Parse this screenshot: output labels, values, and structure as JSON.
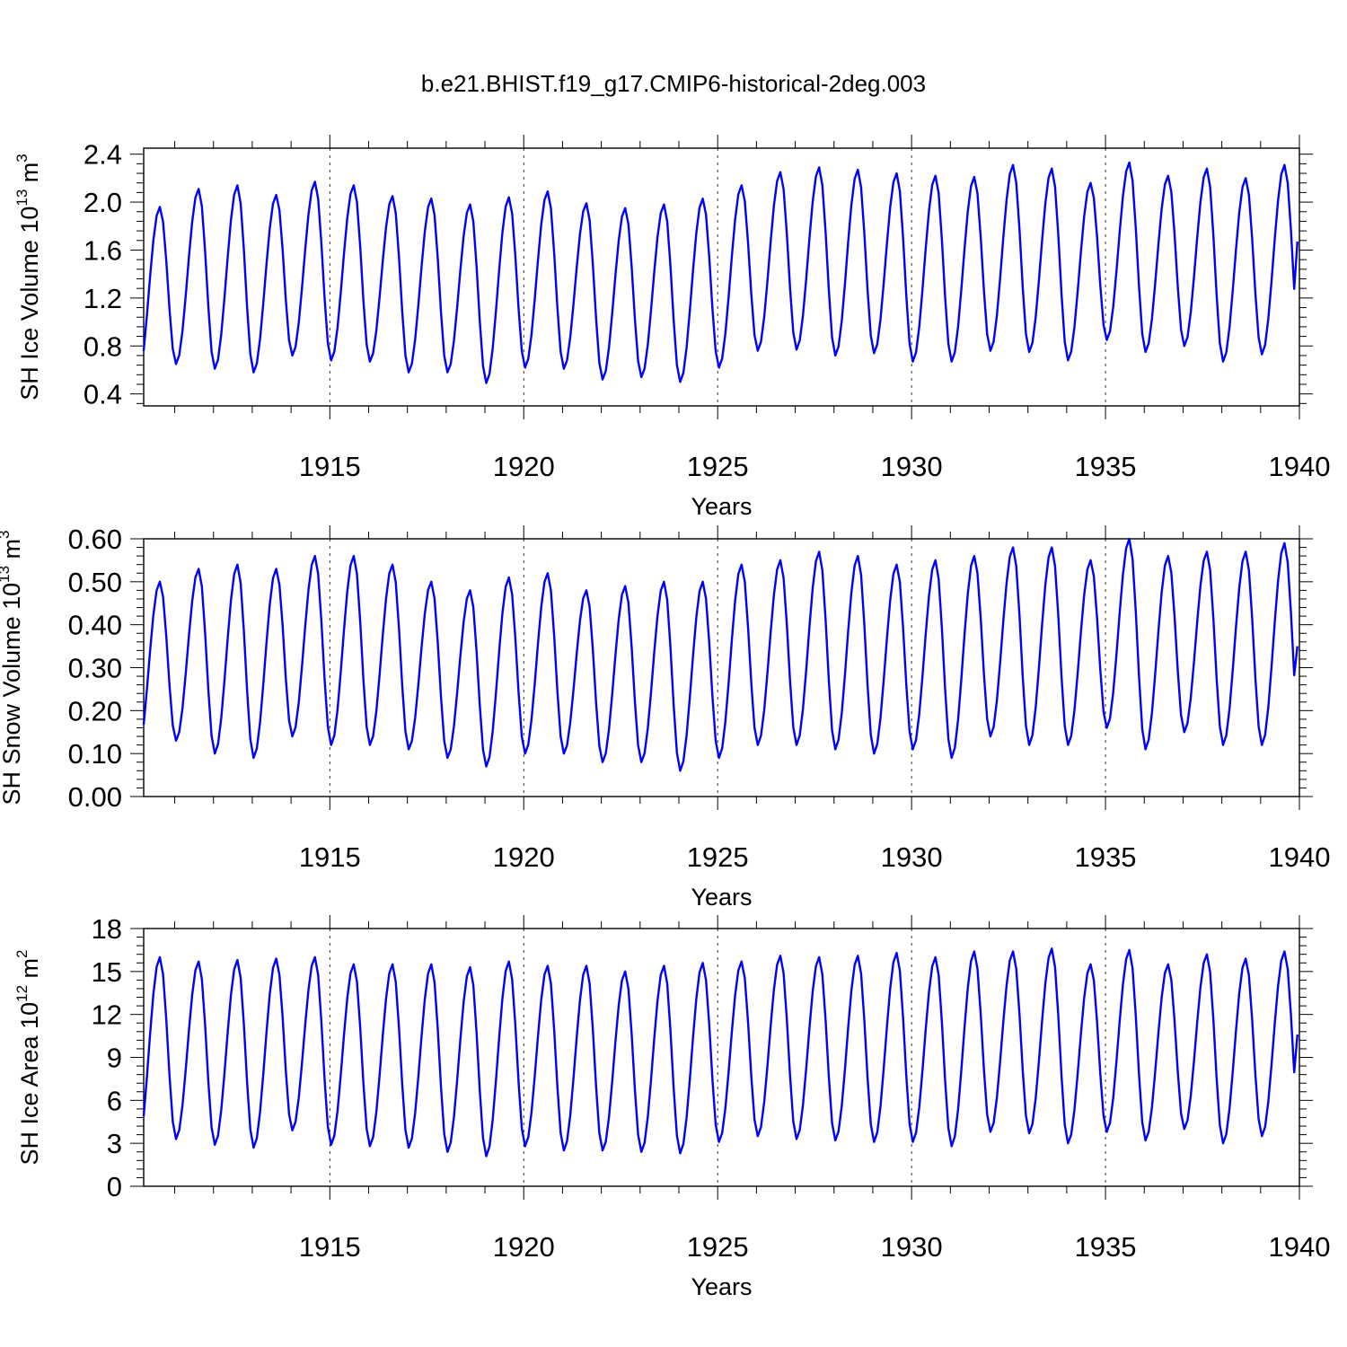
{
  "figure": {
    "title": "b.e21.BHIST.f19_g17.CMIP6-historical-2deg.003"
  },
  "colors": {
    "series": "#0000ff",
    "axes": "#000000",
    "gridline": "#000000"
  },
  "chart_data": [
    {
      "type": "line",
      "title": "",
      "xlabel": "Years",
      "ylabel": "SH Ice Volume 10",
      "ylabel_exponent": "13",
      "ylabel_unit": "m",
      "ylabel_unit_exponent": "3",
      "xlim": [
        1910.2,
        1940
      ],
      "ylim": [
        0.3,
        2.45
      ],
      "x_ticks": [
        1915,
        1920,
        1925,
        1930,
        1935,
        1940
      ],
      "x_tick_labels": [
        "1915",
        "1920",
        "1925",
        "1930",
        "1935",
        "1940"
      ],
      "y_ticks": [
        0.4,
        0.8,
        1.2,
        1.6,
        2.0,
        2.4
      ],
      "y_tick_labels": [
        "0.4",
        "0.8",
        "1.2",
        "1.6",
        "2.0",
        "2.4"
      ],
      "vertical_reference_lines": [
        1915,
        1920,
        1925,
        1930,
        1935
      ],
      "start_x": 1910.2,
      "step_x": 0.08333,
      "series": [
        {
          "maxima": [
            1.96,
            2.11,
            2.14,
            2.06,
            2.17,
            2.14,
            2.05,
            2.03,
            1.98,
            2.04,
            2.09,
            1.99,
            1.95,
            1.98,
            2.03,
            2.14,
            2.25,
            2.29,
            2.27,
            2.24,
            2.22,
            2.21,
            2.31,
            2.28,
            2.16,
            2.33,
            2.22,
            2.28,
            2.2,
            2.31
          ],
          "minima": [
            0.48,
            0.65,
            0.61,
            0.58,
            0.72,
            0.68,
            0.67,
            0.58,
            0.58,
            0.49,
            0.62,
            0.61,
            0.52,
            0.54,
            0.5,
            0.62,
            0.76,
            0.77,
            0.72,
            0.74,
            0.67,
            0.67,
            0.76,
            0.75,
            0.68,
            0.85,
            0.75,
            0.8,
            0.67,
            0.73
          ],
          "end_value": 1.67
        }
      ]
    },
    {
      "type": "line",
      "title": "",
      "xlabel": "Years",
      "ylabel": "SH Snow Volume 10",
      "ylabel_exponent": "13",
      "ylabel_unit": "m",
      "ylabel_unit_exponent": "3",
      "xlim": [
        1910.2,
        1940
      ],
      "ylim": [
        0.0,
        0.6
      ],
      "x_ticks": [
        1915,
        1920,
        1925,
        1930,
        1935,
        1940
      ],
      "x_tick_labels": [
        "1915",
        "1920",
        "1925",
        "1930",
        "1935",
        "1940"
      ],
      "y_ticks": [
        0.0,
        0.1,
        0.2,
        0.3,
        0.4,
        0.5,
        0.6
      ],
      "y_tick_labels": [
        "0.00",
        "0.10",
        "0.20",
        "0.30",
        "0.40",
        "0.50",
        "0.60"
      ],
      "vertical_reference_lines": [
        1915,
        1920,
        1925,
        1930,
        1935
      ],
      "start_x": 1910.2,
      "step_x": 0.08333,
      "series": [
        {
          "maxima": [
            0.5,
            0.53,
            0.54,
            0.53,
            0.56,
            0.56,
            0.54,
            0.5,
            0.48,
            0.51,
            0.52,
            0.48,
            0.49,
            0.5,
            0.5,
            0.54,
            0.55,
            0.57,
            0.56,
            0.54,
            0.55,
            0.56,
            0.58,
            0.58,
            0.55,
            0.6,
            0.56,
            0.57,
            0.57,
            0.59
          ],
          "minima": [
            0.09,
            0.13,
            0.1,
            0.09,
            0.14,
            0.12,
            0.12,
            0.11,
            0.09,
            0.07,
            0.1,
            0.1,
            0.08,
            0.08,
            0.06,
            0.09,
            0.12,
            0.12,
            0.11,
            0.1,
            0.11,
            0.09,
            0.14,
            0.12,
            0.12,
            0.16,
            0.11,
            0.15,
            0.12,
            0.12
          ],
          "end_value": 0.35
        }
      ]
    },
    {
      "type": "line",
      "title": "",
      "xlabel": "Years",
      "ylabel": "SH Ice Area 10",
      "ylabel_exponent": "12",
      "ylabel_unit": "m",
      "ylabel_unit_exponent": "2",
      "xlim": [
        1910.2,
        1940
      ],
      "ylim": [
        0,
        18
      ],
      "x_ticks": [
        1915,
        1920,
        1925,
        1930,
        1935,
        1940
      ],
      "x_tick_labels": [
        "1915",
        "1920",
        "1925",
        "1930",
        "1935",
        "1940"
      ],
      "y_ticks": [
        0,
        3,
        6,
        9,
        12,
        15,
        18
      ],
      "y_tick_labels": [
        "0",
        "3",
        "6",
        "9",
        "12",
        "15",
        "18"
      ],
      "vertical_reference_lines": [
        1915,
        1920,
        1925,
        1930,
        1935
      ],
      "start_x": 1910.2,
      "step_x": 0.08333,
      "series": [
        {
          "maxima": [
            16.0,
            15.7,
            15.8,
            15.9,
            16.0,
            15.5,
            15.5,
            15.5,
            15.3,
            15.7,
            15.4,
            15.4,
            15.0,
            15.4,
            15.6,
            15.7,
            16.1,
            16.0,
            16.1,
            16.3,
            16.0,
            16.4,
            16.4,
            16.6,
            15.5,
            16.5,
            15.5,
            16.2,
            15.9,
            16.4
          ],
          "minima": [
            2.3,
            3.3,
            2.9,
            2.7,
            3.9,
            2.9,
            2.8,
            2.7,
            2.4,
            2.1,
            2.8,
            2.5,
            2.5,
            2.4,
            2.3,
            3.1,
            3.5,
            3.3,
            3.2,
            3.1,
            3.1,
            2.8,
            3.8,
            3.7,
            3.0,
            3.8,
            3.2,
            4.0,
            3.0,
            3.5
          ],
          "end_value": 10.6
        }
      ]
    }
  ]
}
